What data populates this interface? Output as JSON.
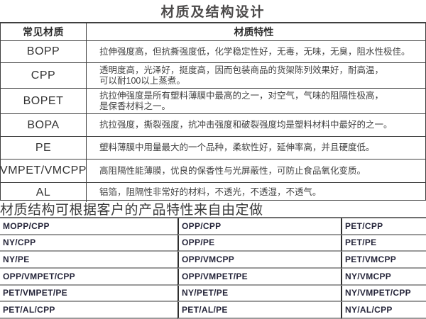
{
  "title": "材质及结构设计",
  "top_table": {
    "header": {
      "material": "常见材质",
      "property": "材质特性"
    },
    "rows": [
      {
        "material": "BOPP",
        "property": "拉伸强度高，但抗撕强度低，化学稳定性好，无毒，无味，无臭，阻水性极佳。"
      },
      {
        "material": "CPP",
        "property": "透明度高，光泽好，挺度高，因而包装商品的货架陈列效果好，耐高温，\n可以耐100以上蒸煮。"
      },
      {
        "material": "BOPET",
        "property": "抗拉伸强度是所有塑料薄膜中最高的之一，对空气，气味的阻隔性极高，\n是保香材料之一。"
      },
      {
        "material": "BOPA",
        "property": "抗拉强度，撕裂强度，抗冲击强度和破裂强度均是塑料材料中最好的之一。"
      },
      {
        "material": "PE",
        "property": "塑料薄膜中用量最大的一个品种，柔软性好，延伸率高，并且硬度低。"
      },
      {
        "material": "VMPET/VMCPP",
        "property": "高阻隔性能薄膜，优良的保香性与光屏蔽性，可防止食品氧化变质。"
      },
      {
        "material": "AL",
        "property": "铝箔，阻隔性非常好的材料，不透光，不透湿，不透气。"
      }
    ]
  },
  "note": "材质结构可根据客户的产品特性来自由定做",
  "structure_table": {
    "columns": [
      [
        "MOPP/CPP",
        "NY/CPP",
        "NY/PE",
        "OPP/VMPET/CPP",
        "PET/VMPET/PE",
        "PET/AL/CPP"
      ],
      [
        "OPP/CPP",
        "OPP/PE",
        "OPP/VMCPP",
        "OPP/VMPET/PE",
        "NY/PET/PE",
        "PET/AL/PE"
      ],
      [
        "PET/CPP",
        "PET/PE",
        "PET/VMCPP",
        "NY/VMCPP",
        "NY/VMPET/CPP",
        "NY/AL/CPP"
      ]
    ]
  },
  "colors": {
    "title_text": "#4c4a4a",
    "table_border": "#3f3f3f",
    "struct_h_border": "#9a9a9a",
    "struct_v_border": "#2e2e2e",
    "body_text": "#3f3f3f"
  }
}
